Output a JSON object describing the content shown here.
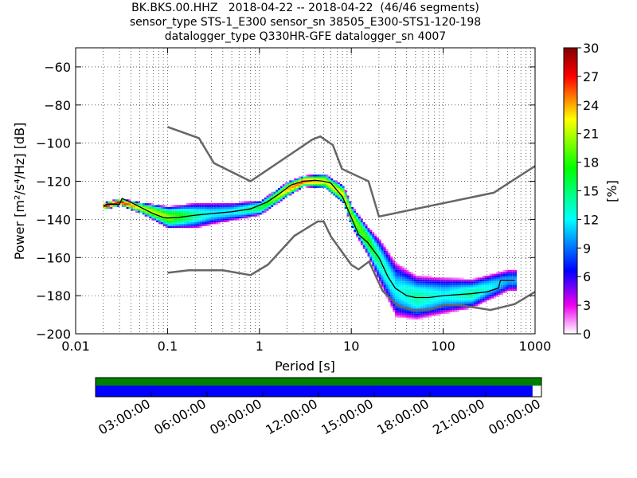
{
  "chart_data": {
    "type": "heatmap",
    "title_lines": [
      "BK.BKS.00.HHZ   2018-04-22 -- 2018-04-22  (46/46 segments)",
      "sensor_type STS-1_E300 sensor_sn 38505_E300-STS1-120-198",
      "datalogger_type Q330HR-GFE datalogger_sn 4007"
    ],
    "xlabel": "Period [s]",
    "ylabel": "Power [m²/s⁴/Hz] [dB]",
    "x_scale": "log",
    "xlim": [
      0.01,
      1000
    ],
    "ylim": [
      -200,
      -50
    ],
    "x_ticks": [
      {
        "value": 0.01,
        "label": "0.01"
      },
      {
        "value": 0.1,
        "label": "0.1"
      },
      {
        "value": 1,
        "label": "1"
      },
      {
        "value": 10,
        "label": "10"
      },
      {
        "value": 100,
        "label": "100"
      },
      {
        "value": 1000,
        "label": "1000"
      }
    ],
    "y_ticks": [
      {
        "value": -60,
        "label": "−60"
      },
      {
        "value": -80,
        "label": "−80"
      },
      {
        "value": -100,
        "label": "−100"
      },
      {
        "value": -120,
        "label": "−120"
      },
      {
        "value": -140,
        "label": "−140"
      },
      {
        "value": -160,
        "label": "−160"
      },
      {
        "value": -180,
        "label": "−180"
      },
      {
        "value": -200,
        "label": "−200"
      }
    ],
    "grid": true,
    "colorbar": {
      "label": "[%]",
      "min": 0,
      "max": 30,
      "ticks": [
        "0",
        "3",
        "6",
        "9",
        "12",
        "15",
        "18",
        "21",
        "24",
        "27",
        "30"
      ],
      "colors": [
        "#ffffff",
        "#ee00ee",
        "#0000ff",
        "#00ffff",
        "#00ff00",
        "#ffff00",
        "#ff0000",
        "#800000"
      ]
    },
    "noise_models": [
      {
        "name": "high_noise_model",
        "color": "#666666",
        "points": [
          [
            0.1,
            -91.5
          ],
          [
            0.22,
            -97.4
          ],
          [
            0.32,
            -110.5
          ],
          [
            0.8,
            -120
          ],
          [
            3.8,
            -98
          ],
          [
            4.6,
            -96.5
          ],
          [
            6.3,
            -101
          ],
          [
            7.9,
            -113.5
          ],
          [
            15.4,
            -120
          ],
          [
            20,
            -138.5
          ],
          [
            354.8,
            -126
          ],
          [
            1000,
            -112
          ]
        ]
      },
      {
        "name": "low_noise_model",
        "color": "#666666",
        "points": [
          [
            0.1,
            -168
          ],
          [
            0.17,
            -166.7
          ],
          [
            0.4,
            -166.7
          ],
          [
            0.8,
            -169.2
          ],
          [
            1.24,
            -163.7
          ],
          [
            2.4,
            -148.6
          ],
          [
            4.3,
            -141.1
          ],
          [
            5,
            -141.1
          ],
          [
            6,
            -149
          ],
          [
            10,
            -163.8
          ],
          [
            12,
            -166.2
          ],
          [
            15.6,
            -162.1
          ],
          [
            21.9,
            -177.5
          ],
          [
            31.6,
            -185
          ],
          [
            45,
            -187.5
          ],
          [
            70,
            -187.5
          ],
          [
            101,
            -185
          ],
          [
            154,
            -185
          ],
          [
            328,
            -187.5
          ],
          [
            600,
            -184.4
          ],
          [
            1000,
            -178
          ]
        ]
      }
    ],
    "median_curve": {
      "color": "#000000",
      "points": [
        [
          0.02,
          -133
        ],
        [
          0.022,
          -132
        ],
        [
          0.03,
          -132
        ],
        [
          0.032,
          -129
        ],
        [
          0.04,
          -131
        ],
        [
          0.05,
          -133.5
        ],
        [
          0.07,
          -137
        ],
        [
          0.09,
          -139
        ],
        [
          0.1,
          -139.3
        ],
        [
          0.13,
          -139
        ],
        [
          0.2,
          -137.8
        ],
        [
          0.3,
          -137
        ],
        [
          0.5,
          -136
        ],
        [
          0.8,
          -134.5
        ],
        [
          1.2,
          -131
        ],
        [
          1.6,
          -127
        ],
        [
          2.2,
          -122
        ],
        [
          3,
          -120
        ],
        [
          4,
          -119.5
        ],
        [
          5,
          -120
        ],
        [
          6,
          -121
        ],
        [
          8,
          -128
        ],
        [
          10,
          -139
        ],
        [
          12,
          -148
        ],
        [
          15,
          -152
        ],
        [
          20,
          -160
        ],
        [
          25,
          -170
        ],
        [
          30,
          -176
        ],
        [
          40,
          -180
        ],
        [
          50,
          -181
        ],
        [
          70,
          -181
        ],
        [
          100,
          -180
        ],
        [
          200,
          -179
        ],
        [
          300,
          -178
        ],
        [
          400,
          -176
        ],
        [
          420,
          -172
        ],
        [
          600,
          -172
        ]
      ]
    },
    "ppsd_percentages": {
      "periods": [
        0.02,
        0.03,
        0.05,
        0.1,
        0.2,
        0.3,
        0.5,
        1,
        2,
        3,
        5,
        8,
        10,
        15,
        20,
        30,
        50,
        100,
        200,
        500
      ],
      "peak_power": [
        -133,
        -131,
        -134,
        -139,
        -138,
        -137,
        -136,
        -134,
        -124,
        -120,
        -120,
        -127,
        -139,
        -152,
        -162,
        -177,
        -181,
        -180,
        -179,
        -172
      ],
      "peak_percent": [
        28,
        28,
        22,
        20,
        14,
        12,
        12,
        16,
        24,
        26,
        22,
        22,
        20,
        18,
        14,
        12,
        14,
        12,
        14,
        10
      ],
      "spread_db": [
        2,
        2,
        3,
        6,
        7,
        6,
        5,
        4,
        4,
        3,
        4,
        5,
        6,
        8,
        12,
        15,
        12,
        10,
        8,
        6
      ]
    }
  },
  "timeline": {
    "ticks": [
      "03:00:00",
      "06:00:00",
      "09:00:00",
      "12:00:00",
      "15:00:00",
      "18:00:00",
      "21:00:00",
      "00:00:00"
    ],
    "data_coverage_fraction": 0.98,
    "gap_fraction": 0.02,
    "processed_color": "#008000",
    "data_color": "#0000ff"
  }
}
